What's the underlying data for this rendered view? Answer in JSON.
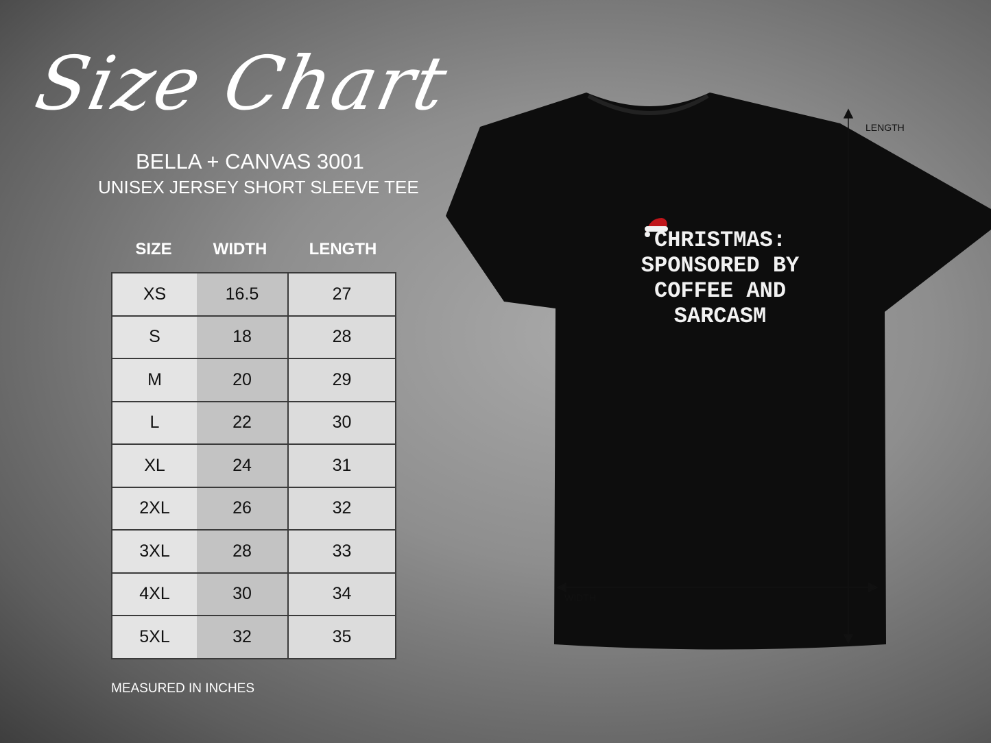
{
  "title": "Size Chart",
  "brand": "BELLA + CANVAS 3001",
  "product": "UNISEX JERSEY SHORT SLEEVE TEE",
  "table": {
    "headers": [
      "SIZE",
      "WIDTH",
      "LENGTH"
    ],
    "rows": [
      [
        "XS",
        "16.5",
        "27"
      ],
      [
        "S",
        "18",
        "28"
      ],
      [
        "M",
        "20",
        "29"
      ],
      [
        "L",
        "22",
        "30"
      ],
      [
        "XL",
        "24",
        "31"
      ],
      [
        "2XL",
        "26",
        "32"
      ],
      [
        "3XL",
        "28",
        "33"
      ],
      [
        "4XL",
        "30",
        "34"
      ],
      [
        "5XL",
        "32",
        "35"
      ]
    ]
  },
  "note": "MEASURED IN INCHES",
  "shirt": {
    "color": "#0d0d0d",
    "print_lines": [
      "CHRISTMAS:",
      "SPONSORED BY",
      "COFFEE AND",
      "SARCASM"
    ],
    "icon": "santa-hat-icon",
    "length_label": "LENGTH",
    "width_label": "WIDTH"
  }
}
